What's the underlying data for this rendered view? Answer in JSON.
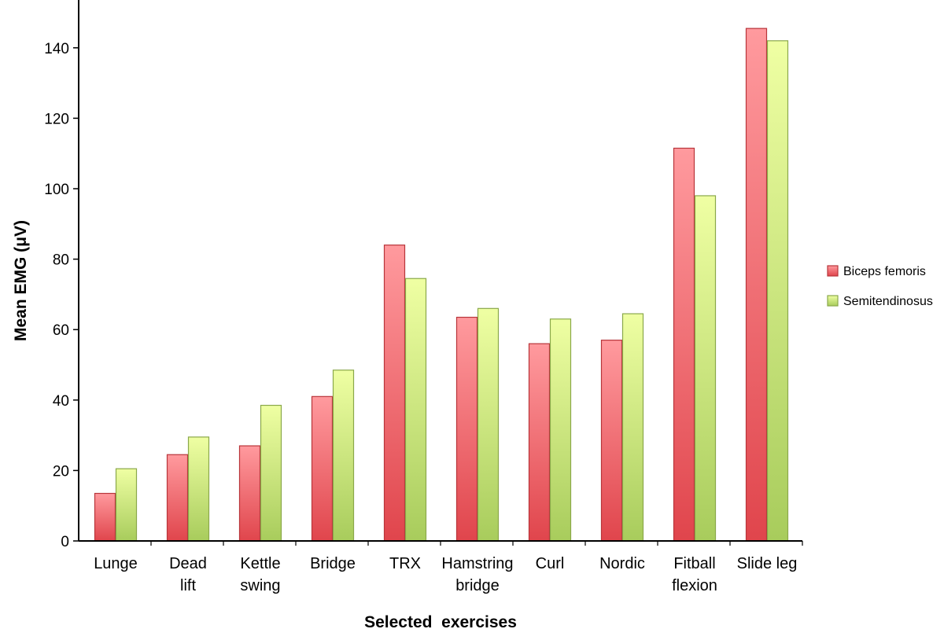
{
  "chart_data": {
    "type": "bar",
    "title": "",
    "xlabel": "Selected  exercises",
    "ylabel": "Mean EMG (μV)",
    "ylim": [
      0,
      150
    ],
    "yticks": [
      0,
      20,
      40,
      60,
      80,
      100,
      120,
      140
    ],
    "grid": false,
    "legend_position": "right",
    "categories": [
      [
        "Lunge"
      ],
      [
        "Dead",
        "lift"
      ],
      [
        "Kettle",
        "swing"
      ],
      [
        "Bridge"
      ],
      [
        "TRX"
      ],
      [
        "Hamstring",
        "bridge"
      ],
      [
        "Curl"
      ],
      [
        "Nordic"
      ],
      [
        "Fitball",
        "flexion"
      ],
      [
        "Slide leg"
      ]
    ],
    "series": [
      {
        "name": "Biceps femoris",
        "values": [
          13.5,
          24.5,
          27,
          41,
          84,
          63.5,
          56,
          57,
          111.5,
          145.5
        ]
      },
      {
        "name": "Semitendinosus",
        "values": [
          20.5,
          29.5,
          38.5,
          48.5,
          74.5,
          66,
          63,
          64.5,
          98,
          142
        ]
      }
    ],
    "colors": {
      "series_a_top": "#ff9a9e",
      "series_a_bottom": "#e0454c",
      "series_b_top": "#efffa3",
      "series_b_bottom": "#a8cc5c",
      "axis": "#000000"
    }
  }
}
